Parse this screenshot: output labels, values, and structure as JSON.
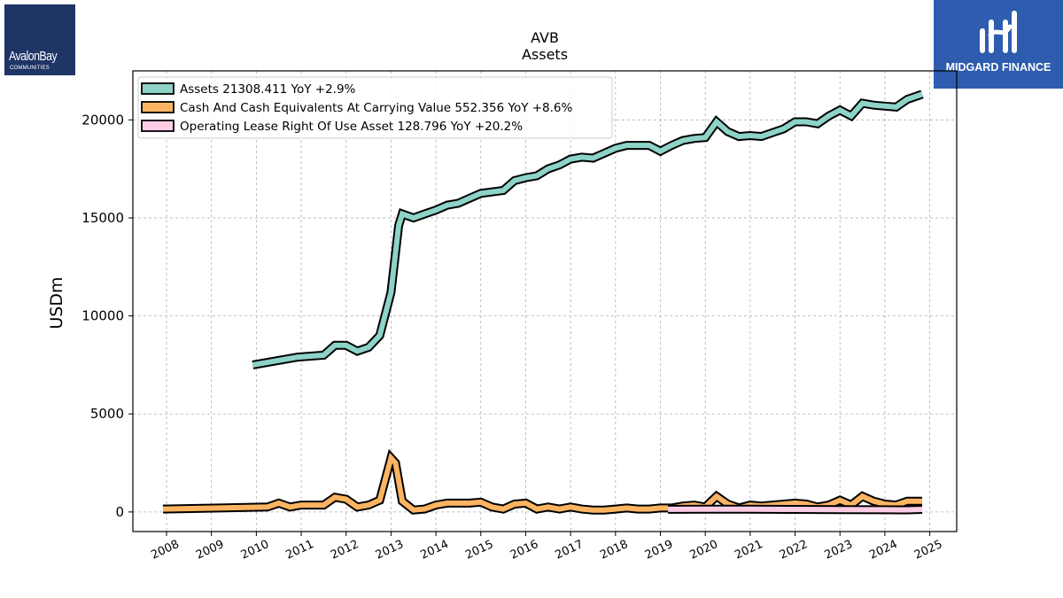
{
  "logos": {
    "left": {
      "name": "AvalonBay",
      "sub": "COMMUNITIES"
    },
    "right": {
      "name": "MIDGARD FINANCE"
    }
  },
  "colors": {
    "assets": "#8dd3c7",
    "cash": "#fdb462",
    "lease": "#fccde5",
    "outline": "#000000",
    "grid": "#b0b0b0"
  },
  "chart_data": {
    "type": "line",
    "title": "AVB",
    "subtitle": "Assets",
    "xlabel": "",
    "ylabel": "USDm",
    "xlim": [
      2007.25,
      2025.6
    ],
    "ylim": [
      -1000,
      22500
    ],
    "x_ticks": [
      "2008",
      "2009",
      "2010",
      "2011",
      "2012",
      "2013",
      "2014",
      "2015",
      "2016",
      "2017",
      "2018",
      "2019",
      "2020",
      "2021",
      "2022",
      "2023",
      "2024",
      "2025"
    ],
    "y_ticks": [
      "0",
      "5000",
      "10000",
      "15000",
      "20000"
    ],
    "grid": true,
    "legend_position": "top-left",
    "series": [
      {
        "name": "Assets",
        "legend": "Assets  21308.411 YoY +2.9%",
        "color": "#8dd3c7",
        "x": [
          2009.92,
          2010.92,
          2011.5,
          2011.75,
          2012.0,
          2012.25,
          2012.5,
          2012.75,
          2013.0,
          2013.17,
          2013.25,
          2013.5,
          2013.75,
          2014.0,
          2014.25,
          2014.5,
          2014.75,
          2015.0,
          2015.5,
          2015.75,
          2016.0,
          2016.25,
          2016.5,
          2016.75,
          2017.0,
          2017.25,
          2017.5,
          2017.75,
          2018.0,
          2018.25,
          2018.5,
          2018.75,
          2019.0,
          2019.25,
          2019.5,
          2019.75,
          2020.0,
          2020.25,
          2020.5,
          2020.75,
          2021.0,
          2021.25,
          2021.5,
          2021.75,
          2022.0,
          2022.25,
          2022.5,
          2022.75,
          2023.0,
          2023.25,
          2023.5,
          2023.75,
          2024.0,
          2024.25,
          2024.5,
          2024.83
        ],
        "values": [
          7500,
          7900,
          8000,
          8500,
          8500,
          8200,
          8400,
          9000,
          11200,
          14600,
          15200,
          15000,
          15200,
          15400,
          15650,
          15750,
          16000,
          16250,
          16400,
          16900,
          17050,
          17150,
          17500,
          17700,
          18000,
          18100,
          18050,
          18300,
          18550,
          18700,
          18700,
          18700,
          18400,
          18700,
          18950,
          19050,
          19100,
          19900,
          19400,
          19150,
          19200,
          19150,
          19350,
          19550,
          19900,
          19900,
          19800,
          20200,
          20500,
          20200,
          20850,
          20750,
          20700,
          20650,
          21050,
          21308
        ]
      },
      {
        "name": "Cash And Cash Equivalents At Carrying Value",
        "legend": "Cash And Cash Equivalents At Carrying Value  552.356 YoY +8.6%",
        "color": "#fdb462",
        "x": [
          2007.92,
          2010.25,
          2010.5,
          2010.75,
          2011.0,
          2011.5,
          2011.75,
          2012.0,
          2012.25,
          2012.5,
          2012.75,
          2013.0,
          2013.1,
          2013.25,
          2013.5,
          2013.75,
          2014.0,
          2014.25,
          2014.5,
          2014.75,
          2015.0,
          2015.25,
          2015.5,
          2015.75,
          2016.0,
          2016.25,
          2016.5,
          2016.75,
          2017.0,
          2017.25,
          2017.5,
          2017.75,
          2018.0,
          2018.25,
          2018.5,
          2018.75,
          2019.0,
          2019.25,
          2019.5,
          2019.75,
          2020.0,
          2020.25,
          2020.5,
          2020.75,
          2021.0,
          2021.25,
          2021.5,
          2021.75,
          2022.0,
          2022.25,
          2022.5,
          2022.75,
          2023.0,
          2023.25,
          2023.5,
          2023.75,
          2024.0,
          2024.25,
          2024.5,
          2024.83
        ],
        "values": [
          150,
          250,
          450,
          250,
          350,
          350,
          750,
          650,
          250,
          350,
          600,
          2750,
          2500,
          550,
          100,
          150,
          350,
          450,
          450,
          450,
          500,
          250,
          150,
          400,
          450,
          150,
          250,
          150,
          250,
          150,
          100,
          100,
          150,
          200,
          150,
          150,
          200,
          200,
          300,
          350,
          250,
          800,
          400,
          200,
          350,
          300,
          350,
          400,
          450,
          400,
          250,
          350,
          600,
          350,
          800,
          550,
          400,
          350,
          550,
          552
        ]
      },
      {
        "name": "Operating Lease Right Of Use Asset",
        "legend": "Operating Lease Right Of Use Asset  128.796 YoY +20.2%",
        "color": "#fccde5",
        "x": [
          2019.17,
          2020.0,
          2021.0,
          2022.0,
          2023.0,
          2024.0,
          2024.5,
          2024.83
        ],
        "values": [
          135,
          140,
          140,
          130,
          120,
          110,
          107,
          129
        ]
      }
    ]
  }
}
